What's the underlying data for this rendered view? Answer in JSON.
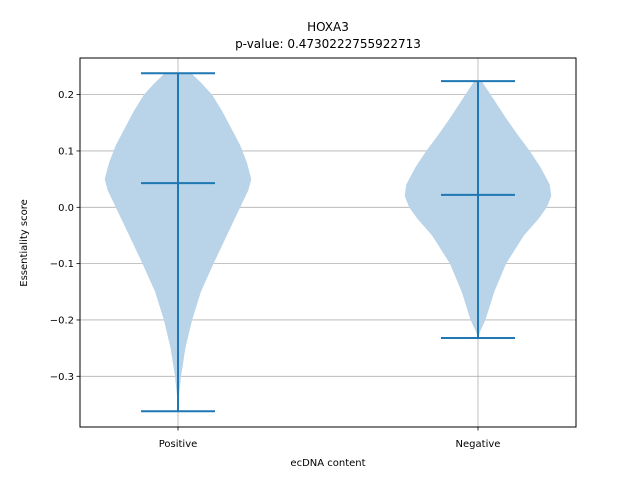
{
  "chart_data": {
    "type": "violin",
    "title": "HOXA3",
    "subtitle": "p-value: 0.4730222755922713",
    "xlabel": "ecDNA content",
    "ylabel": "Essentiality score",
    "categories": [
      "Positive",
      "Negative"
    ],
    "ylim": [
      -0.39,
      0.265
    ],
    "yticks": [
      -0.3,
      -0.2,
      -0.1,
      0.0,
      0.1,
      0.2
    ],
    "ytick_labels": [
      "−0.3",
      "−0.2",
      "−0.1",
      "0.0",
      "0.1",
      "0.2"
    ],
    "grid": true,
    "colors": {
      "body": "#b9d3e8",
      "line": "#1f77b4",
      "grid": "#b0b0b0"
    },
    "violins": [
      {
        "category": "Positive",
        "min": -0.362,
        "median": 0.043,
        "max": 0.238,
        "density": [
          [
            -0.362,
            0.0
          ],
          [
            -0.34,
            0.01
          ],
          [
            -0.3,
            0.04
          ],
          [
            -0.25,
            0.1
          ],
          [
            -0.2,
            0.19
          ],
          [
            -0.15,
            0.31
          ],
          [
            -0.1,
            0.48
          ],
          [
            -0.05,
            0.66
          ],
          [
            0.0,
            0.84
          ],
          [
            0.03,
            0.95
          ],
          [
            0.05,
            0.99
          ],
          [
            0.08,
            0.93
          ],
          [
            0.11,
            0.84
          ],
          [
            0.14,
            0.72
          ],
          [
            0.17,
            0.6
          ],
          [
            0.2,
            0.46
          ],
          [
            0.22,
            0.32
          ],
          [
            0.238,
            0.18
          ]
        ]
      },
      {
        "category": "Negative",
        "min": -0.232,
        "median": 0.022,
        "max": 0.224,
        "density": [
          [
            -0.232,
            0.0
          ],
          [
            -0.22,
            0.03
          ],
          [
            -0.2,
            0.1
          ],
          [
            -0.15,
            0.22
          ],
          [
            -0.1,
            0.38
          ],
          [
            -0.05,
            0.62
          ],
          [
            -0.02,
            0.82
          ],
          [
            0.0,
            0.93
          ],
          [
            0.02,
            0.99
          ],
          [
            0.04,
            0.97
          ],
          [
            0.07,
            0.85
          ],
          [
            0.1,
            0.7
          ],
          [
            0.13,
            0.53
          ],
          [
            0.16,
            0.37
          ],
          [
            0.19,
            0.22
          ],
          [
            0.21,
            0.12
          ],
          [
            0.224,
            0.05
          ]
        ]
      }
    ]
  }
}
